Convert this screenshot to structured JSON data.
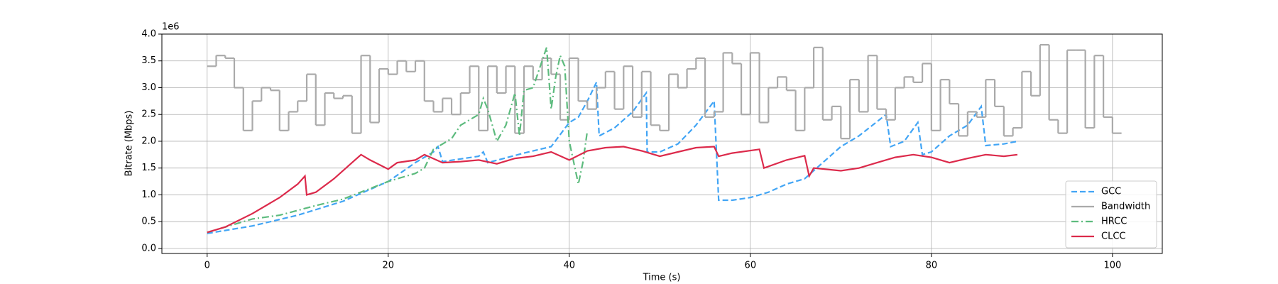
{
  "chart_data": {
    "type": "line",
    "xlabel": "Time (s)",
    "ylabel": "Bitrate (Mbps)",
    "y_offset_text": "1e6",
    "xlim": [
      -5,
      105.5
    ],
    "ylim": [
      -0.094,
      4.0
    ],
    "xticks": [
      0,
      20,
      40,
      60,
      80,
      100
    ],
    "yticks": [
      {
        "value": 0,
        "label": "0.0"
      },
      0.5,
      {
        "value": 1,
        "label": "1.0"
      },
      1.5,
      {
        "value": 2,
        "label": "2.0"
      },
      2.5,
      {
        "value": 3,
        "label": "3.0"
      },
      3.5,
      {
        "value": 4,
        "label": "4.0"
      }
    ],
    "grid": true,
    "legend": "lower right",
    "series": [
      {
        "name": "GCC",
        "color": "#42a5f5",
        "linestyle": "dashed",
        "drawstyle": "line",
        "x": [
          0,
          5,
          10,
          15,
          20,
          23,
          25,
          25.5,
          26,
          30,
          30.5,
          31,
          35,
          38,
          40,
          41,
          42,
          43,
          43.3,
          45,
          47,
          48.5,
          48.6,
          50,
          52,
          54,
          56,
          56.5,
          58,
          60,
          62,
          64,
          66,
          68,
          70,
          72,
          75,
          75.5,
          77,
          78.5,
          79,
          80,
          82,
          84,
          85.5,
          86,
          88,
          89.5
        ],
        "values": [
          0.28,
          0.42,
          0.62,
          0.88,
          1.25,
          1.6,
          1.8,
          1.9,
          1.62,
          1.72,
          1.8,
          1.6,
          1.78,
          1.9,
          2.35,
          2.45,
          2.75,
          3.1,
          2.1,
          2.25,
          2.55,
          2.9,
          1.8,
          1.8,
          1.95,
          2.3,
          2.75,
          0.9,
          0.9,
          0.95,
          1.05,
          1.2,
          1.3,
          1.6,
          1.9,
          2.1,
          2.5,
          1.9,
          2.0,
          2.35,
          1.75,
          1.8,
          2.1,
          2.3,
          2.65,
          1.92,
          1.95,
          2.0
        ]
      },
      {
        "name": "Bandwidth",
        "color": "#aaaaaa",
        "linestyle": "solid",
        "drawstyle": "steps",
        "x": [
          0,
          1,
          2,
          3,
          4,
          5,
          6,
          7,
          8,
          9,
          10,
          11,
          12,
          13,
          14,
          15,
          16,
          17,
          18,
          19,
          20,
          21,
          22,
          23,
          24,
          25,
          26,
          27,
          28,
          29,
          30,
          31,
          32,
          33,
          34,
          35,
          36,
          37,
          38,
          39,
          40,
          41,
          42,
          43,
          44,
          45,
          46,
          47,
          48,
          49,
          50,
          51,
          52,
          53,
          54,
          55,
          56,
          57,
          58,
          59,
          60,
          61,
          62,
          63,
          64,
          65,
          66,
          67,
          68,
          69,
          70,
          71,
          72,
          73,
          74,
          75,
          76,
          77,
          78,
          79,
          80,
          81,
          82,
          83,
          84,
          85,
          86,
          87,
          88,
          89,
          90,
          91,
          92,
          93,
          94,
          95,
          96,
          97,
          98,
          99,
          100,
          101
        ],
        "values": [
          3.4,
          3.6,
          3.55,
          3.0,
          2.2,
          2.75,
          3.0,
          2.95,
          2.2,
          2.55,
          2.75,
          3.25,
          2.3,
          2.9,
          2.8,
          2.85,
          2.15,
          3.6,
          2.35,
          3.35,
          3.25,
          3.5,
          3.3,
          3.5,
          2.75,
          2.55,
          2.8,
          2.5,
          2.9,
          3.4,
          2.2,
          3.4,
          2.9,
          3.4,
          2.15,
          3.4,
          3.15,
          3.55,
          3.25,
          2.4,
          3.55,
          2.75,
          2.6,
          3.0,
          3.3,
          2.6,
          3.4,
          2.45,
          3.3,
          2.3,
          2.2,
          3.25,
          3.0,
          3.35,
          3.55,
          2.45,
          2.55,
          3.65,
          3.45,
          2.5,
          3.65,
          2.35,
          3.0,
          3.2,
          2.95,
          2.2,
          3.0,
          3.75,
          2.4,
          2.65,
          2.05,
          3.15,
          2.55,
          3.6,
          2.6,
          2.4,
          3.0,
          3.2,
          3.1,
          3.45,
          2.2,
          3.15,
          2.7,
          2.1,
          2.55,
          2.45,
          3.15,
          2.65,
          2.1,
          2.25,
          3.3,
          2.85,
          3.8,
          2.4,
          2.15,
          3.7,
          3.7,
          2.25,
          3.6,
          2.45,
          2.15,
          2.15
        ]
      },
      {
        "name": "HRCC",
        "color": "#5dbb7e",
        "linestyle": "dashdot",
        "drawstyle": "line",
        "x": [
          0,
          5,
          8,
          12,
          15,
          20,
          23,
          24,
          25,
          27,
          28,
          30,
          30.5,
          31,
          32,
          33,
          34,
          34.5,
          35,
          36,
          37,
          37.5,
          38,
          38.5,
          39,
          39.5,
          40,
          41,
          41.5,
          42
        ],
        "values": [
          0.3,
          0.55,
          0.62,
          0.8,
          0.92,
          1.25,
          1.4,
          1.5,
          1.85,
          2.05,
          2.3,
          2.5,
          2.8,
          2.6,
          2.0,
          2.3,
          2.9,
          2.1,
          2.95,
          3.0,
          3.5,
          3.75,
          2.6,
          3.2,
          3.6,
          3.4,
          2.0,
          1.2,
          1.6,
          2.2
        ]
      },
      {
        "name": "CLCC",
        "color": "#dc2a4b",
        "linestyle": "solid",
        "drawstyle": "line",
        "x": [
          0,
          2,
          5,
          8,
          10,
          10.8,
          11,
          12,
          14,
          16,
          17,
          18,
          20,
          21,
          23,
          24,
          26,
          28,
          30,
          32,
          34,
          36,
          38,
          40,
          42,
          44,
          46,
          48,
          50,
          52,
          54,
          56,
          56.5,
          58,
          61,
          61.5,
          64,
          66,
          66.5,
          67,
          70,
          72,
          74,
          76,
          78,
          80,
          82,
          84,
          86,
          88,
          89.5
        ],
        "values": [
          0.3,
          0.4,
          0.65,
          0.95,
          1.2,
          1.35,
          1.0,
          1.05,
          1.3,
          1.6,
          1.75,
          1.65,
          1.48,
          1.6,
          1.65,
          1.75,
          1.6,
          1.62,
          1.65,
          1.58,
          1.68,
          1.72,
          1.8,
          1.65,
          1.82,
          1.88,
          1.9,
          1.82,
          1.72,
          1.8,
          1.88,
          1.9,
          1.72,
          1.78,
          1.85,
          1.5,
          1.65,
          1.73,
          1.35,
          1.5,
          1.45,
          1.5,
          1.6,
          1.7,
          1.75,
          1.7,
          1.6,
          1.68,
          1.75,
          1.72,
          1.75
        ]
      }
    ]
  }
}
